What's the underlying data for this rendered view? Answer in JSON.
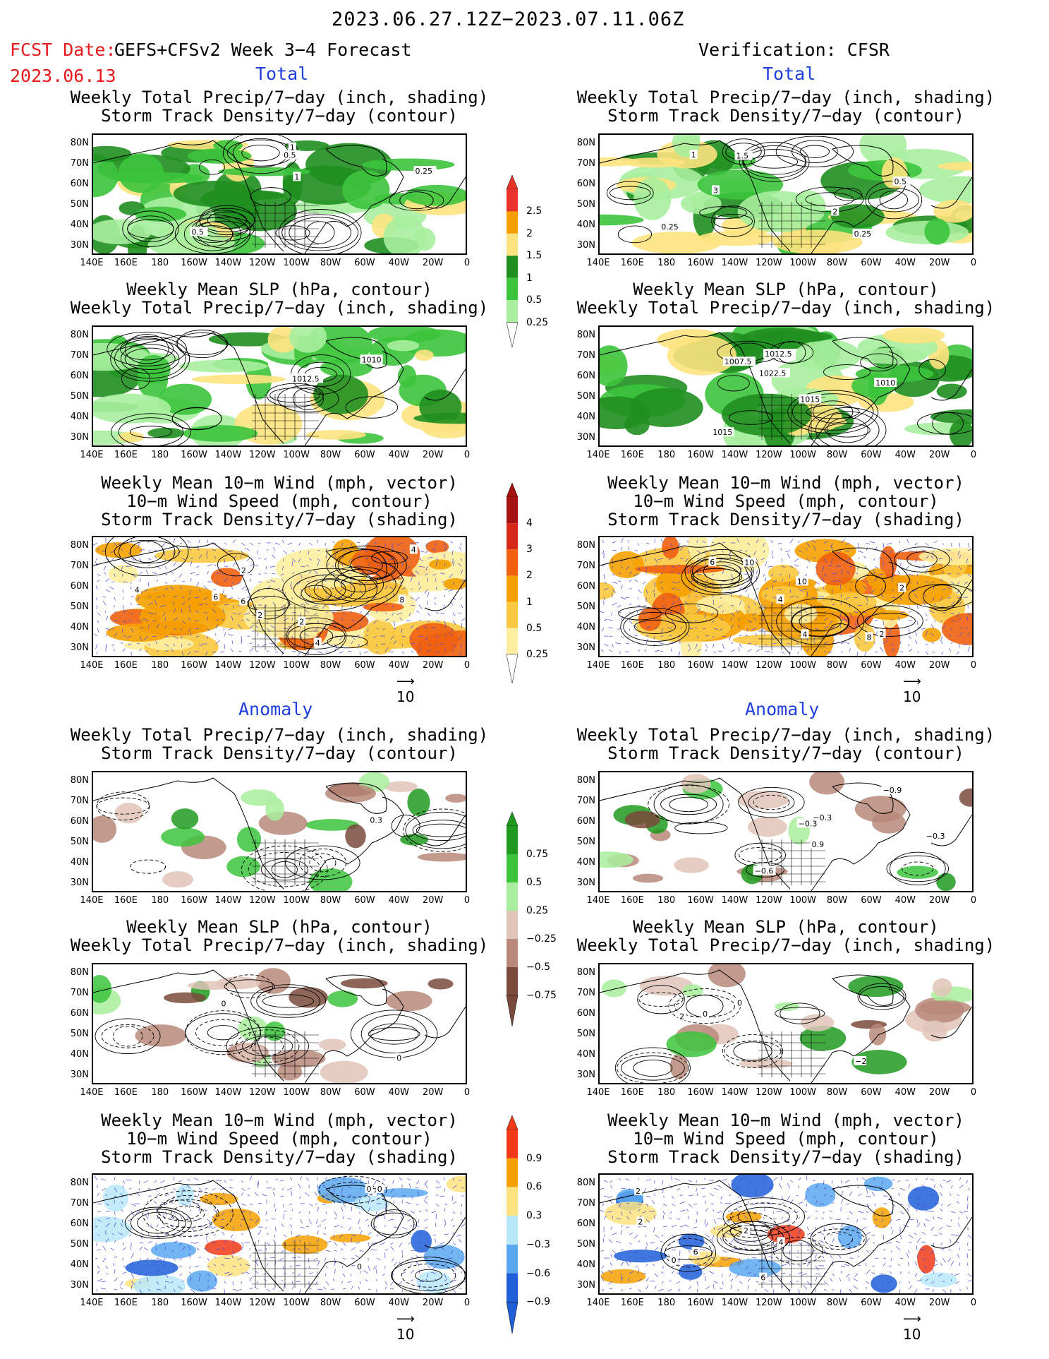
{
  "header": {
    "title": "2023.06.27.12Z−2023.07.11.06Z",
    "fcst_label": "FCST Date:",
    "fcst_date": "2023.06.13",
    "forecast_name": "GEFS+CFSv2 Week 3−4 Forecast",
    "verification": "Verification: CFSR"
  },
  "sections": {
    "total": "Total",
    "anomaly": "Anomaly"
  },
  "panel_titles": {
    "precip_storm": [
      "Weekly Total Precip/7−day (inch, shading)",
      "Storm Track Density/7−day (contour)"
    ],
    "slp_precip": [
      "Weekly Mean SLP (hPa, contour)",
      "Weekly Total Precip/7−day (inch, shading)"
    ],
    "wind_storm": [
      "Weekly Mean 10−m Wind (mph, vector)",
      "10−m Wind Speed (mph, contour)",
      "Storm Track Density/7−day (shading)"
    ]
  },
  "axes": {
    "lat_labels": [
      "80N",
      "70N",
      "60N",
      "50N",
      "40N",
      "30N"
    ],
    "lon_labels": [
      "140E",
      "160E",
      "180",
      "160W",
      "140W",
      "120W",
      "100W",
      "80W",
      "60W",
      "40W",
      "20W",
      "0"
    ]
  },
  "colorbars": {
    "precip_total": {
      "labels": [
        "2.5",
        "2",
        "1.5",
        "1",
        "0.5",
        "0.25"
      ],
      "colors": [
        "#e8322a",
        "#f5a000",
        "#fde380",
        "#1f8f1f",
        "#3cc43c",
        "#a9ee9e"
      ]
    },
    "storm_total": {
      "labels": [
        "4",
        "3",
        "2",
        "1",
        "0.5",
        "0.25"
      ],
      "colors": [
        "#a51212",
        "#d62818",
        "#f06010",
        "#f5a000",
        "#f9c840",
        "#fdeea0"
      ]
    },
    "precip_anom": {
      "labels": [
        "0.75",
        "0.5",
        "0.25",
        "−0.25",
        "−0.5",
        "−0.75"
      ],
      "colors": [
        "#1f9a1f",
        "#3cc43c",
        "#a9ee9e",
        "#e0c4b8",
        "#b8887a",
        "#7a4a3c"
      ]
    },
    "storm_anom": {
      "labels": [
        "0.9",
        "0.6",
        "0.3",
        "−0.3",
        "−0.6",
        "−0.9"
      ],
      "colors": [
        "#f03a18",
        "#f5a000",
        "#fde380",
        "#b8e8f8",
        "#5aa8f0",
        "#1f5fd8"
      ]
    }
  },
  "vector_ref": "10",
  "contour_labels": {
    "fcst_total_precip": [
      "0.25",
      "1",
      "1",
      "0.5",
      "0.5"
    ],
    "obs_total_precip": [
      "0.5",
      "1",
      "2",
      "3",
      "0.25",
      "0.25",
      "1.5"
    ],
    "fcst_total_slp": [
      "1012.5",
      "1010"
    ],
    "obs_total_slp": [
      "1007.5",
      "1015",
      "1010",
      "1022.5",
      "1012.5",
      "1015"
    ],
    "fcst_total_wind": [
      "2",
      "4",
      "4",
      "2",
      "4",
      "2",
      "6",
      "8",
      "6"
    ],
    "obs_total_wind": [
      "2",
      "4",
      "4",
      "2",
      "10",
      "8",
      "6",
      "10"
    ],
    "fcst_anom_precip": [
      "0.3"
    ],
    "obs_anom_precip": [
      "−0.3",
      "0.9",
      "−0.9",
      "−0.6",
      "−0.3",
      "−0.3"
    ],
    "fcst_anom_slp": [
      "0",
      "0"
    ],
    "obs_anom_slp": [
      "0",
      "0",
      "2",
      "−2"
    ],
    "fcst_anom_wind": [
      "0",
      "0",
      "0"
    ],
    "obs_anom_wind": [
      "4",
      "2",
      "2",
      "2",
      "6",
      "6",
      "0"
    ]
  }
}
